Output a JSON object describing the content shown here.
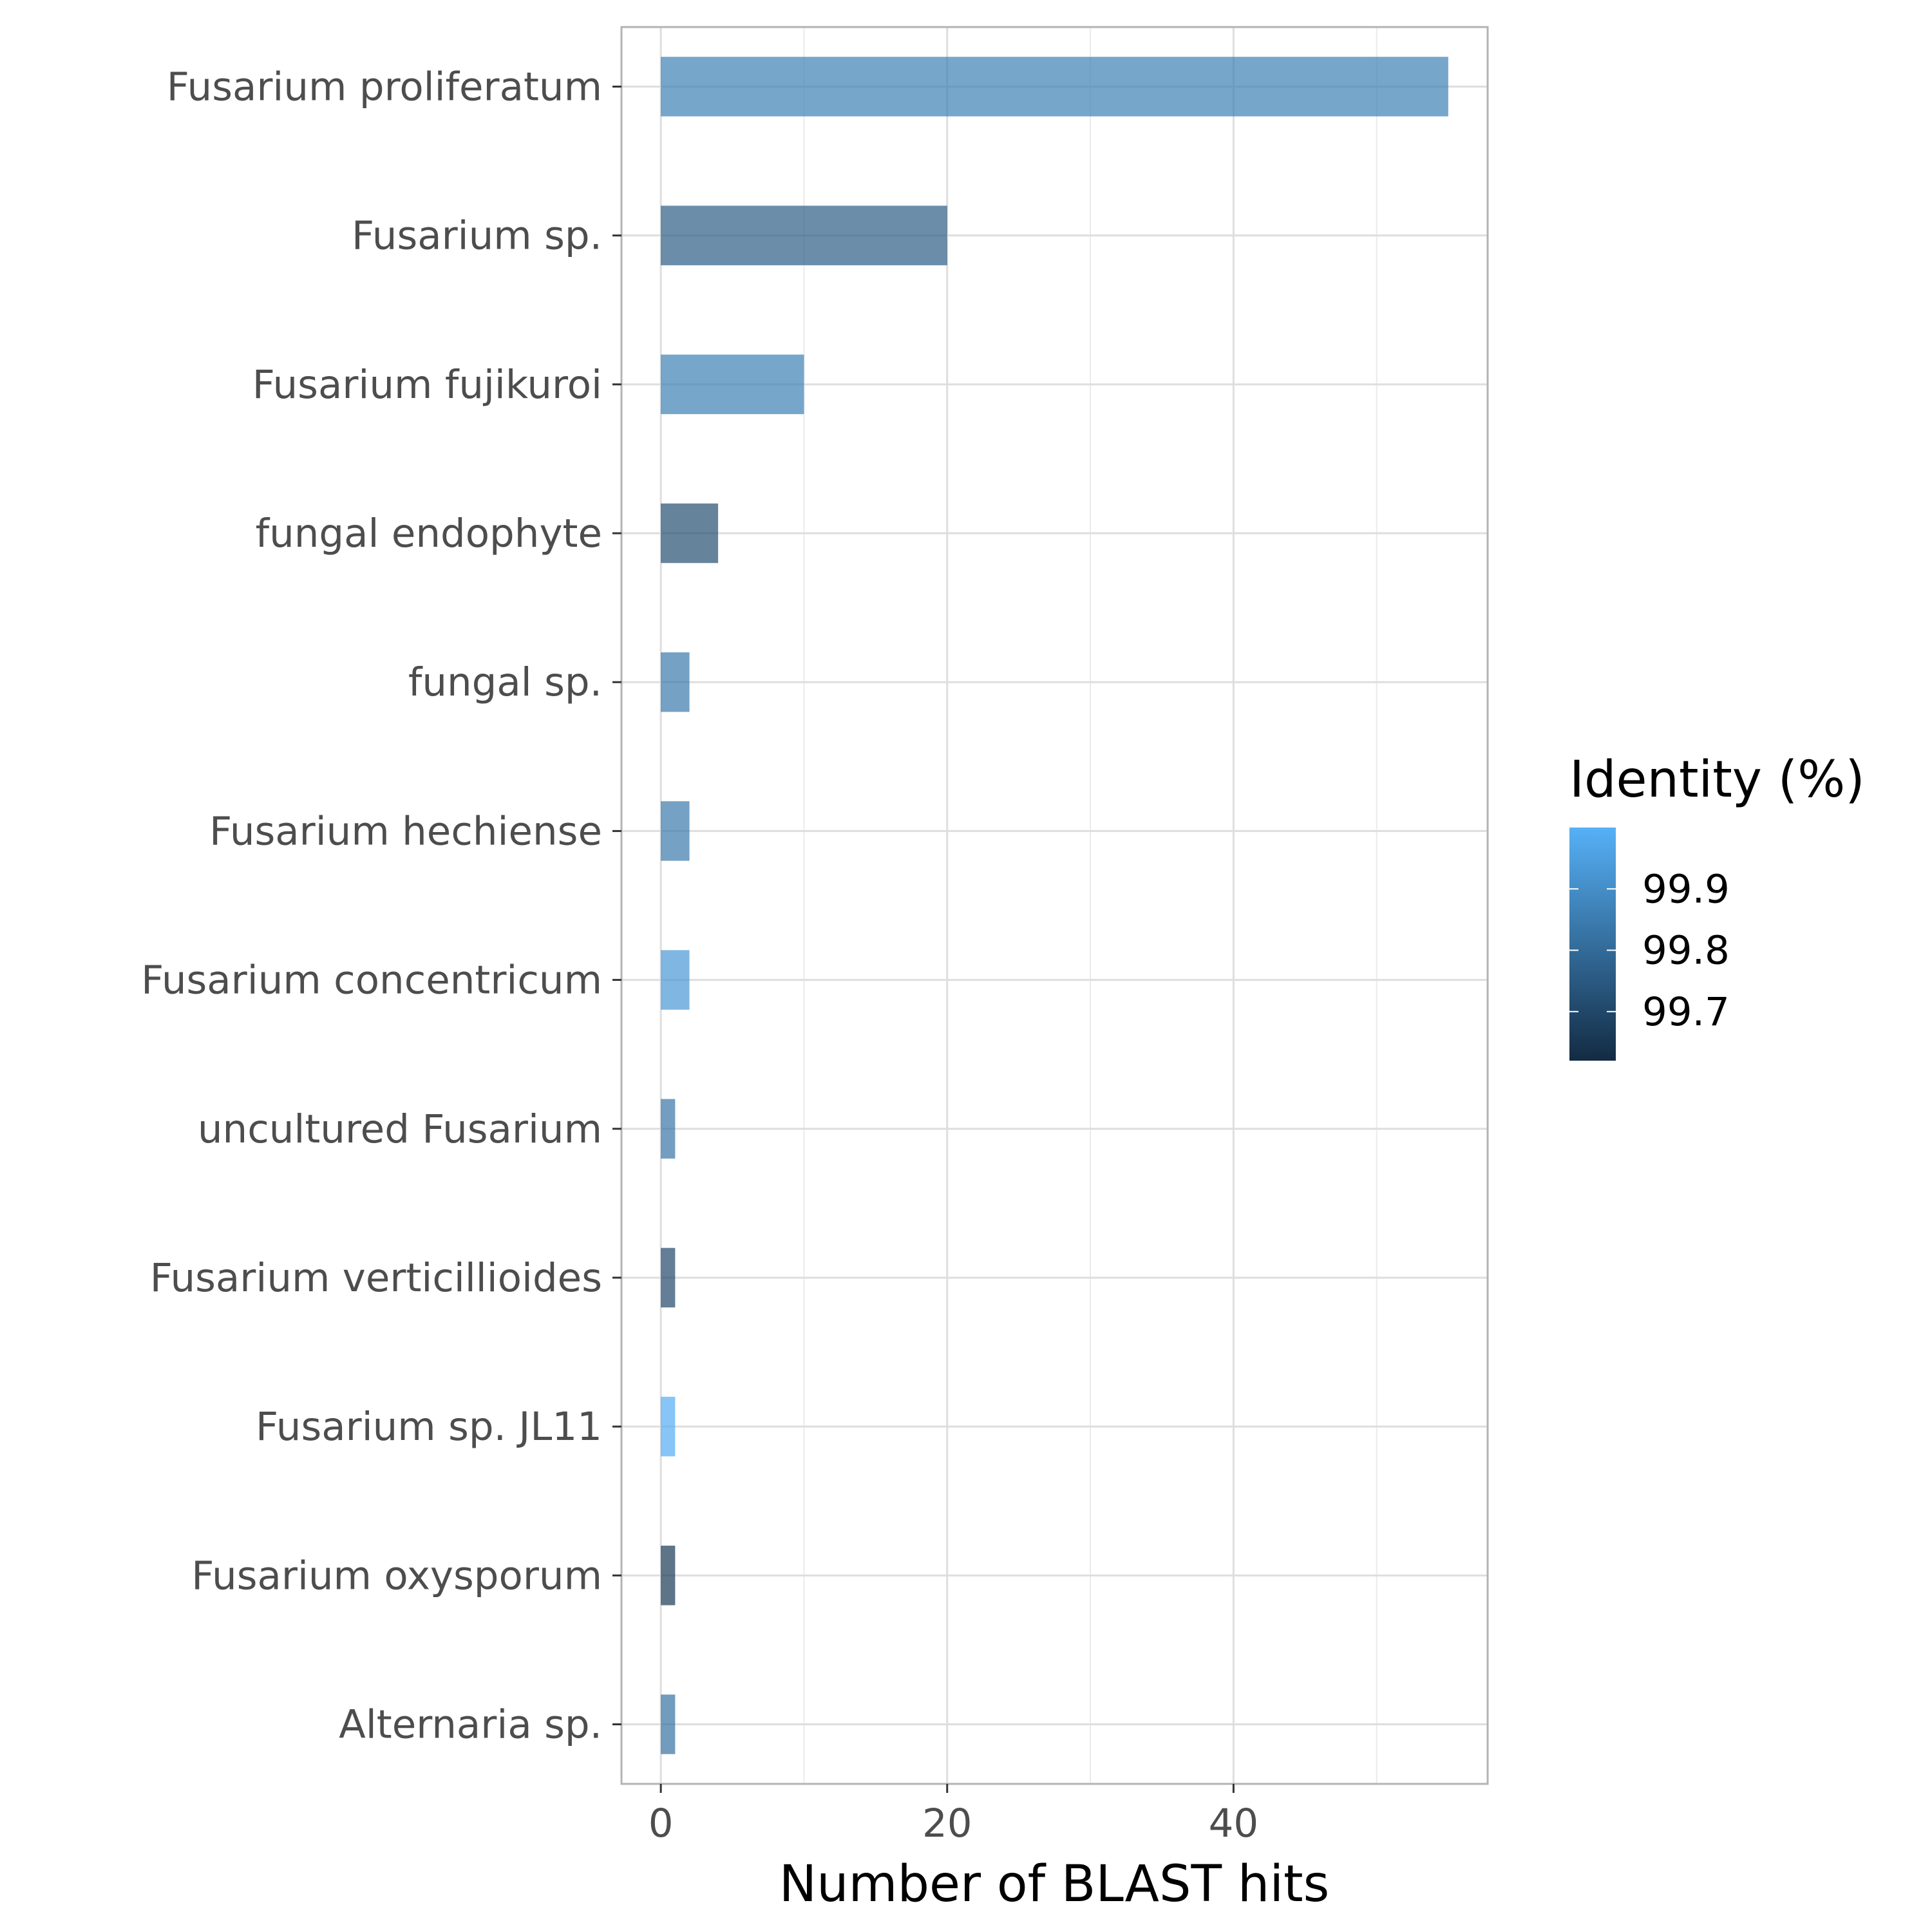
{
  "chart_data": {
    "type": "bar",
    "orientation": "horizontal",
    "xlabel": "Number of BLAST hits",
    "ylabel": "",
    "xlim": [
      -2.75,
      57.75
    ],
    "x_ticks": [
      0,
      20,
      40
    ],
    "x_tick_labels": [
      "0",
      "20",
      "40"
    ],
    "grid": true,
    "categories": [
      "Fusarium proliferatum",
      "Fusarium sp.",
      "Fusarium fujikuroi",
      "fungal endophyte",
      "fungal sp.",
      "Fusarium hechiense",
      "Fusarium concentricum",
      "uncultured Fusarium",
      "Fusarium verticillioides",
      "Fusarium sp. JL11",
      "Fusarium oxysporum",
      "Alternaria sp."
    ],
    "values": [
      55,
      20,
      10,
      4,
      2,
      2,
      2,
      1,
      1,
      1,
      1,
      1
    ],
    "identity": [
      99.86,
      99.76,
      99.86,
      99.72,
      99.84,
      99.84,
      99.93,
      99.83,
      99.7,
      99.99,
      99.66,
      99.82
    ],
    "bar_opacity": 0.7,
    "legend": {
      "title": "Identity (%)",
      "placement": "right",
      "type": "colorbar",
      "range": [
        99.62,
        100.0
      ],
      "ticks": [
        99.7,
        99.8,
        99.9
      ],
      "tick_labels": [
        "99.7",
        "99.8",
        "99.9"
      ],
      "color_low": "#132B43",
      "color_high": "#56B1F7"
    }
  }
}
